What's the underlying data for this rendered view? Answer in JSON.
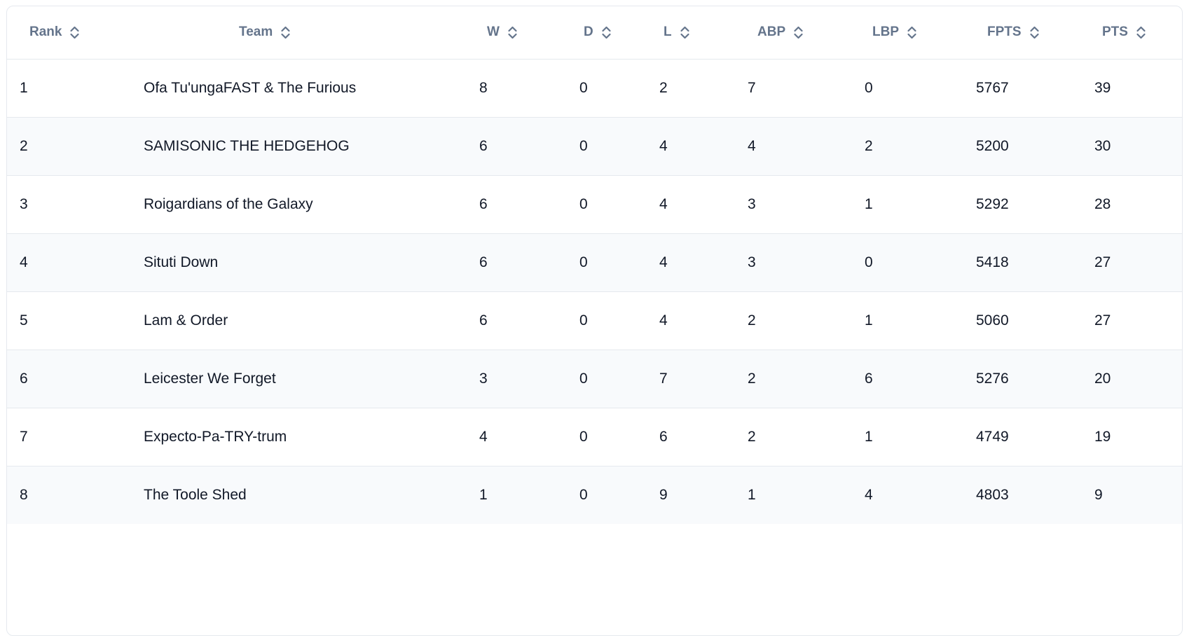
{
  "table": {
    "columns": [
      {
        "key": "rank",
        "label": "Rank"
      },
      {
        "key": "team",
        "label": "Team"
      },
      {
        "key": "w",
        "label": "W"
      },
      {
        "key": "d",
        "label": "D"
      },
      {
        "key": "l",
        "label": "L"
      },
      {
        "key": "abp",
        "label": "ABP"
      },
      {
        "key": "lbp",
        "label": "LBP"
      },
      {
        "key": "fpts",
        "label": "FPTS"
      },
      {
        "key": "pts",
        "label": "PTS"
      }
    ],
    "sort_icon": "sort-chevrons",
    "rows": [
      {
        "rank": "1",
        "team": "Ofa Tu'ungaFAST & The Furious",
        "w": "8",
        "d": "0",
        "l": "2",
        "abp": "7",
        "lbp": "0",
        "fpts": "5767",
        "pts": "39"
      },
      {
        "rank": "2",
        "team": "SAMISONIC THE HEDGEHOG",
        "w": "6",
        "d": "0",
        "l": "4",
        "abp": "4",
        "lbp": "2",
        "fpts": "5200",
        "pts": "30"
      },
      {
        "rank": "3",
        "team": "Roigardians of the Galaxy",
        "w": "6",
        "d": "0",
        "l": "4",
        "abp": "3",
        "lbp": "1",
        "fpts": "5292",
        "pts": "28"
      },
      {
        "rank": "4",
        "team": "Situti Down",
        "w": "6",
        "d": "0",
        "l": "4",
        "abp": "3",
        "lbp": "0",
        "fpts": "5418",
        "pts": "27"
      },
      {
        "rank": "5",
        "team": "Lam & Order",
        "w": "6",
        "d": "0",
        "l": "4",
        "abp": "2",
        "lbp": "1",
        "fpts": "5060",
        "pts": "27"
      },
      {
        "rank": "6",
        "team": "Leicester We Forget",
        "w": "3",
        "d": "0",
        "l": "7",
        "abp": "2",
        "lbp": "6",
        "fpts": "5276",
        "pts": "20"
      },
      {
        "rank": "7",
        "team": "Expecto-Pa-TRY-trum",
        "w": "4",
        "d": "0",
        "l": "6",
        "abp": "2",
        "lbp": "1",
        "fpts": "4749",
        "pts": "19"
      },
      {
        "rank": "8",
        "team": "The Toole Shed",
        "w": "1",
        "d": "0",
        "l": "9",
        "abp": "1",
        "lbp": "4",
        "fpts": "4803",
        "pts": "9"
      }
    ],
    "colors": {
      "header_text": "#64748b",
      "body_text": "#111827",
      "row_stripe": "#f8fafc",
      "border": "#e5e9ee"
    }
  }
}
